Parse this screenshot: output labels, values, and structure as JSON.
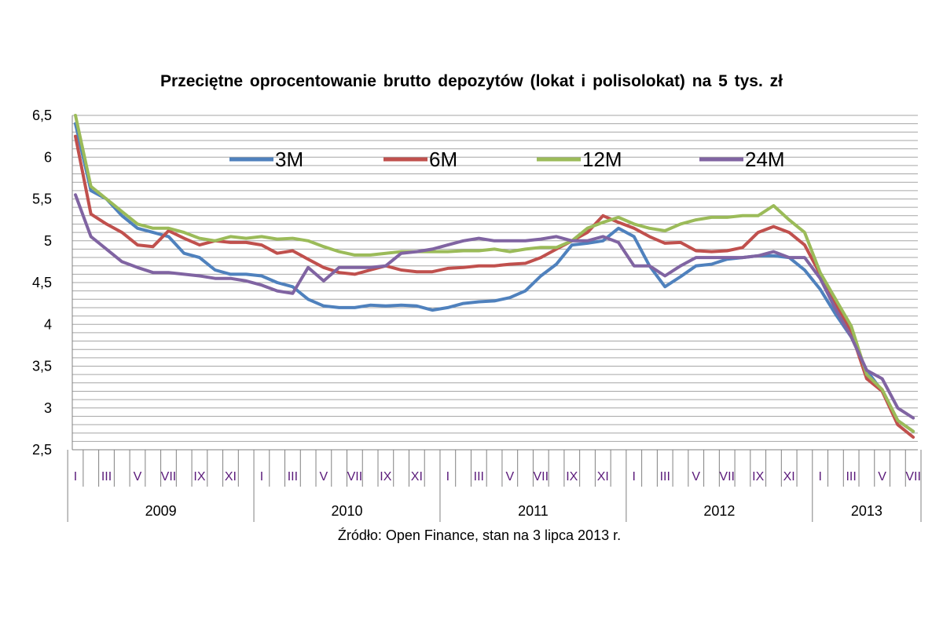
{
  "chart_data": {
    "type": "line",
    "title": "Przeciętne oprocentowanie  brutto  depozytów (lokat i polisolokat) na 5 tys. zł",
    "source": "Źródło: Open Finance, stan na 3 lipca 2013 r.",
    "xlabel": "",
    "ylabel": "",
    "ylim": [
      2.5,
      6.5
    ],
    "y_ticks": [
      "2,5",
      "3",
      "3,5",
      "4",
      "4,5",
      "5",
      "5,5",
      "6",
      "6,5"
    ],
    "grid": true,
    "legend_position": "top",
    "month_labels": [
      "I",
      "III",
      "V",
      "VII",
      "IX",
      "XI"
    ],
    "years": [
      "2009",
      "2010",
      "2011",
      "2012",
      "2013"
    ],
    "months_total": 55,
    "series": [
      {
        "name": "3M",
        "color": "#4f81bd",
        "values": [
          6.4,
          5.6,
          5.5,
          5.3,
          5.15,
          5.1,
          5.05,
          4.85,
          4.8,
          4.65,
          4.6,
          4.6,
          4.58,
          4.5,
          4.45,
          4.3,
          4.22,
          4.2,
          4.2,
          4.23,
          4.22,
          4.23,
          4.22,
          4.17,
          4.2,
          4.25,
          4.27,
          4.28,
          4.32,
          4.4,
          4.58,
          4.72,
          4.95,
          4.97,
          5.0,
          5.15,
          5.05,
          4.7,
          4.45,
          4.57,
          4.7,
          4.72,
          4.78,
          4.8,
          4.82,
          4.82,
          4.8,
          4.65,
          4.42,
          4.12,
          3.85,
          3.45,
          3.2,
          2.85,
          2.72
        ]
      },
      {
        "name": "6M",
        "color": "#c0504d",
        "values": [
          6.25,
          5.32,
          5.2,
          5.1,
          4.95,
          4.93,
          5.12,
          5.03,
          4.95,
          5.0,
          4.98,
          4.98,
          4.95,
          4.85,
          4.88,
          4.78,
          4.68,
          4.62,
          4.6,
          4.65,
          4.7,
          4.65,
          4.63,
          4.63,
          4.67,
          4.68,
          4.7,
          4.7,
          4.72,
          4.73,
          4.8,
          4.9,
          5.0,
          5.1,
          5.3,
          5.22,
          5.15,
          5.05,
          4.97,
          4.98,
          4.88,
          4.87,
          4.88,
          4.92,
          5.1,
          5.17,
          5.1,
          4.95,
          4.6,
          4.25,
          3.9,
          3.35,
          3.2,
          2.8,
          2.65
        ]
      },
      {
        "name": "12M",
        "color": "#9bbb59",
        "values": [
          6.5,
          5.65,
          5.5,
          5.35,
          5.2,
          5.15,
          5.15,
          5.1,
          5.03,
          5.0,
          5.05,
          5.03,
          5.05,
          5.02,
          5.03,
          5.0,
          4.93,
          4.87,
          4.83,
          4.83,
          4.85,
          4.87,
          4.87,
          4.87,
          4.87,
          4.88,
          4.88,
          4.9,
          4.87,
          4.9,
          4.92,
          4.92,
          5.0,
          5.15,
          5.22,
          5.28,
          5.2,
          5.15,
          5.12,
          5.2,
          5.25,
          5.28,
          5.28,
          5.3,
          5.3,
          5.42,
          5.25,
          5.1,
          4.62,
          4.3,
          3.98,
          3.4,
          3.22,
          2.85,
          2.72
        ]
      },
      {
        "name": "24M",
        "color": "#8064a2",
        "values": [
          5.55,
          5.05,
          4.9,
          4.75,
          4.68,
          4.62,
          4.62,
          4.6,
          4.58,
          4.55,
          4.55,
          4.52,
          4.47,
          4.4,
          4.37,
          4.68,
          4.52,
          4.68,
          4.68,
          4.68,
          4.7,
          4.85,
          4.87,
          4.9,
          4.95,
          5.0,
          5.03,
          5.0,
          5.0,
          5.0,
          5.02,
          5.05,
          5.0,
          5.0,
          5.05,
          4.98,
          4.7,
          4.7,
          4.58,
          4.7,
          4.8,
          4.8,
          4.8,
          4.8,
          4.82,
          4.87,
          4.8,
          4.8,
          4.55,
          4.18,
          3.85,
          3.45,
          3.35,
          3.0,
          2.88
        ]
      }
    ]
  }
}
